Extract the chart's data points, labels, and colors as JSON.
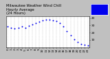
{
  "title_line1": "Milwaukee Weather Wind Chill",
  "title_line2": "Hourly Average",
  "title_line3": "(24 Hours)",
  "x_values": [
    0,
    1,
    2,
    3,
    4,
    5,
    6,
    7,
    8,
    9,
    10,
    11,
    12,
    13,
    14,
    15,
    16,
    17,
    18,
    19,
    20,
    21,
    22,
    23
  ],
  "y_values": [
    28,
    27,
    26,
    27,
    28,
    27,
    29,
    31,
    33,
    35,
    37,
    38,
    38,
    37,
    36,
    33,
    28,
    22,
    16,
    11,
    7,
    4,
    3,
    2
  ],
  "dot_color": "#0000ee",
  "dot_size": 2.0,
  "bg_color": "#ffffff",
  "outer_bg": "#c0c0c0",
  "legend_facecolor": "#0000ee",
  "legend_edgecolor": "#ffffff",
  "ylim": [
    0,
    42
  ],
  "xlim": [
    -0.5,
    23.5
  ],
  "yticks": [
    10,
    20,
    30,
    40
  ],
  "xtick_labels": [
    "0",
    "1",
    "2",
    "3",
    "4",
    "5",
    "6",
    "7",
    "8",
    "9",
    "10",
    "11",
    "12",
    "13",
    "14",
    "15",
    "16",
    "17",
    "18",
    "19",
    "20",
    "21",
    "22",
    "23"
  ],
  "grid_color": "#bbbbbb",
  "grid_style": "--",
  "title_fontsize": 3.8,
  "tick_fontsize": 3.2,
  "title_color": "#000000"
}
